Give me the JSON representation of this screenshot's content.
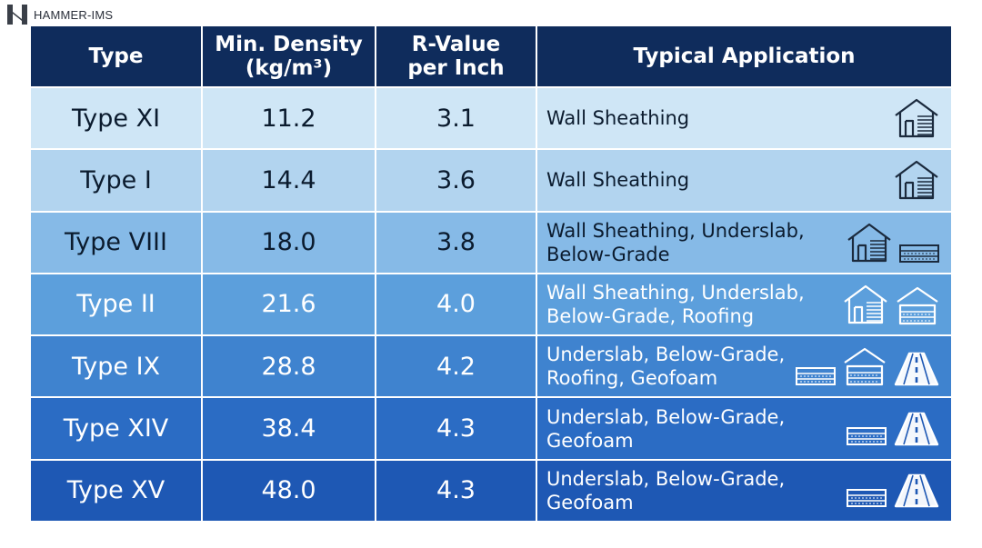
{
  "brand": {
    "name": "HAMMER-IMS"
  },
  "table": {
    "headers": {
      "type": "Type",
      "density_line1": "Min. Density",
      "density_line2": "(kg/m³)",
      "rvalue_line1": "R-Value",
      "rvalue_line2": "per Inch",
      "application": "Typical Application"
    },
    "rows": [
      {
        "type": "Type XI",
        "density": "11.2",
        "rvalue": "3.1",
        "app_line1": "Wall Sheathing",
        "app_line2": "",
        "icons": [
          "house-icon"
        ]
      },
      {
        "type": "Type I",
        "density": "14.4",
        "rvalue": "3.6",
        "app_line1": "Wall Sheathing",
        "app_line2": "",
        "icons": [
          "house-icon"
        ]
      },
      {
        "type": "Type VIII",
        "density": "18.0",
        "rvalue": "3.8",
        "app_line1": "Wall Sheathing, Underslab,",
        "app_line2": "Below-Grade",
        "icons": [
          "house-icon",
          "slab-icon"
        ]
      },
      {
        "type": "Type II",
        "density": "21.6",
        "rvalue": "4.0",
        "app_line1": "Wall Sheathing, Underslab,",
        "app_line2": "Below-Grade, Roofing",
        "icons": [
          "house-icon",
          "roof-icon"
        ]
      },
      {
        "type": "Type IX",
        "density": "28.8",
        "rvalue": "4.2",
        "app_line1": "Underslab, Below-Grade,",
        "app_line2": "Roofing, Geofoam",
        "icons": [
          "slab-icon",
          "roof-icon",
          "road-icon"
        ]
      },
      {
        "type": "Type XIV",
        "density": "38.4",
        "rvalue": "4.3",
        "app_line1": "Underslab, Below-Grade,",
        "app_line2": "Geofoam",
        "icons": [
          "slab-icon",
          "road-icon"
        ]
      },
      {
        "type": "Type XV",
        "density": "48.0",
        "rvalue": "4.3",
        "app_line1": "Underslab, Below-Grade,",
        "app_line2": "Geofoam",
        "icons": [
          "slab-icon",
          "road-icon"
        ]
      }
    ]
  },
  "colors": {
    "header_bg": "#0f2c5c",
    "row_bgs": [
      "#cfe6f6",
      "#b2d4ef",
      "#86bae7",
      "#5c9fdc",
      "#3f83cf",
      "#2b6cc4",
      "#1e58b4"
    ]
  }
}
